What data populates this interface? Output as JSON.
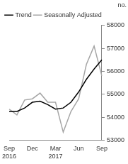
{
  "chart_data": {
    "type": "line",
    "ylabel": "no.",
    "categories": [
      "Sep 2016",
      null,
      null,
      "Dec",
      null,
      null,
      "Mar 2017",
      null,
      null,
      "Jun",
      null,
      null,
      "Sep"
    ],
    "series": [
      {
        "name": "Trend",
        "color": "#000000",
        "values": [
          54250,
          54250,
          54400,
          54650,
          54700,
          54550,
          54350,
          54400,
          54650,
          55100,
          55650,
          56100,
          56500
        ]
      },
      {
        "name": "Seasonally Adjusted",
        "color": "#a6a6a6",
        "values": [
          54350,
          54100,
          54750,
          54800,
          55050,
          54650,
          54650,
          53350,
          54250,
          54800,
          56300,
          57100,
          55800
        ]
      }
    ],
    "ylim": [
      53000,
      58000
    ],
    "yticks": [
      53000,
      54000,
      55000,
      56000,
      57000,
      58000
    ],
    "grid": false,
    "legend": "top-left"
  }
}
